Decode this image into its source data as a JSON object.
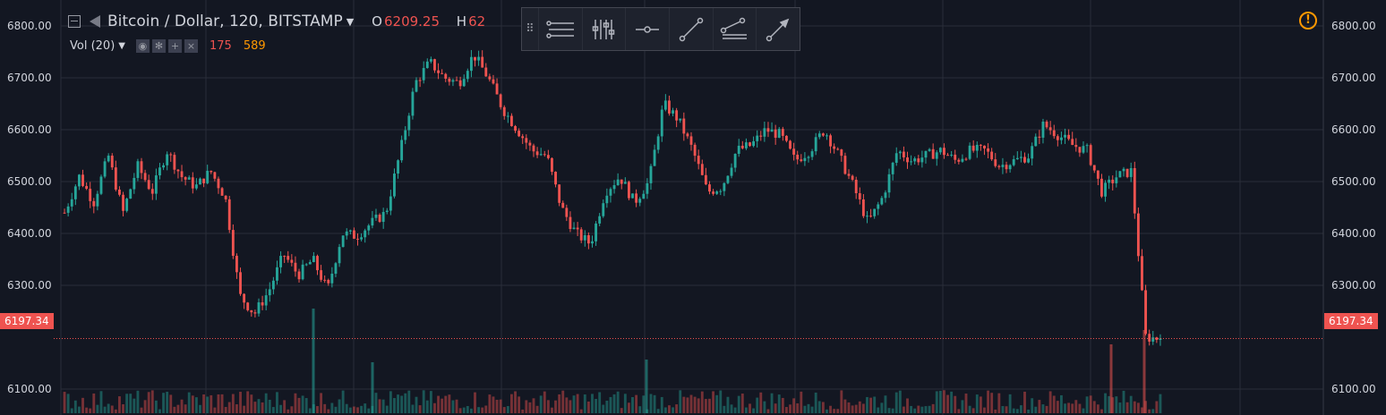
{
  "header": {
    "symbol_title": "Bitcoin / Dollar, 120, BITSTAMP",
    "open_label": "O",
    "open_value": "6209.25",
    "high_label": "H",
    "high_value": "62"
  },
  "volume_legend": {
    "label": "Vol (20)",
    "value_1": "175",
    "value_2": "589"
  },
  "drawing_toolbar": {
    "icons": [
      "drag-handle-icon",
      "horizontal-lines-icon",
      "vertical-sliders-icon",
      "horizontal-ray-icon",
      "trend-line-icon",
      "parallel-channel-icon",
      "arrow-line-icon"
    ]
  },
  "alert_icon": "!",
  "current_price_label": "6197.34",
  "colors": {
    "background": "#131722",
    "grid": "#2a2e39",
    "up": "#26a69a",
    "down": "#ef5350",
    "text": "#d1d4dc",
    "alert": "#ff9800"
  },
  "chart_data": {
    "type": "candlestick",
    "title": "Bitcoin / Dollar, 120, BITSTAMP",
    "interval": "120",
    "ylim": [
      6050,
      6850
    ],
    "y_ticks": [
      "6100.00",
      "6300.00",
      "6400.00",
      "6500.00",
      "6600.00",
      "6700.00",
      "6800.00"
    ],
    "y_tick_values": [
      6100,
      6300,
      6400,
      6500,
      6600,
      6700,
      6800
    ],
    "last_price": 6197.34,
    "grid": true,
    "close_path": [
      6440,
      6510,
      6460,
      6550,
      6440,
      6530,
      6480,
      6560,
      6510,
      6490,
      6520,
      6470,
      6280,
      6245,
      6290,
      6360,
      6320,
      6350,
      6290,
      6400,
      6395,
      6420,
      6440,
      6560,
      6690,
      6730,
      6700,
      6690,
      6745,
      6700,
      6640,
      6600,
      6560,
      6550,
      6450,
      6400,
      6380,
      6480,
      6510,
      6460,
      6500,
      6650,
      6620,
      6560,
      6480,
      6490,
      6560,
      6570,
      6600,
      6590,
      6540,
      6560,
      6600,
      6550,
      6490,
      6420,
      6470,
      6560,
      6540,
      6550,
      6560,
      6540,
      6560,
      6560,
      6530,
      6540,
      6550,
      6610,
      6590,
      6570,
      6560,
      6480,
      6510,
      6520,
      6200,
      6197
    ],
    "volume_spikes": [
      {
        "x": 350,
        "v": 117
      },
      {
        "x": 416,
        "v": 57
      },
      {
        "x": 722,
        "v": 60
      },
      {
        "x": 1241,
        "v": 77
      },
      {
        "x": 1278,
        "v": 93
      }
    ]
  }
}
